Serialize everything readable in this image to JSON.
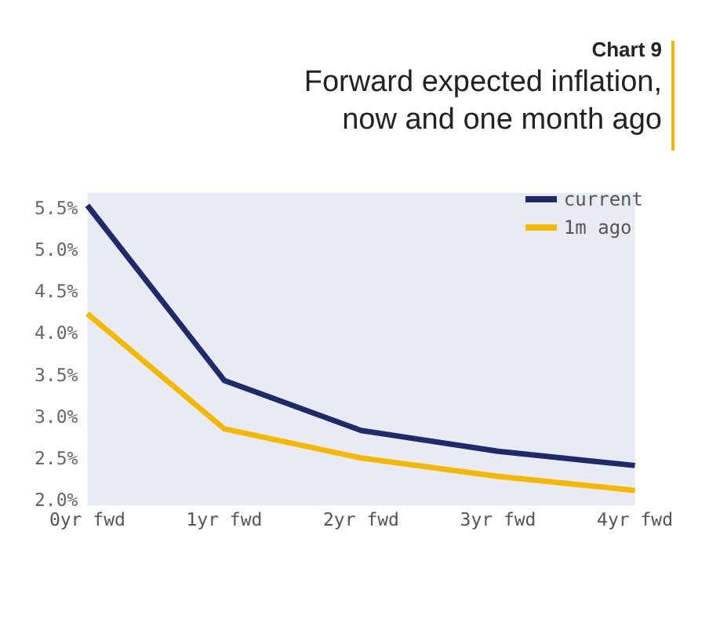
{
  "chart_data": {
    "type": "line",
    "title": "Forward expected inflation, now and one month ago",
    "annotations": [
      "Chart 9"
    ],
    "categories": [
      "0yr fwd",
      "1yr fwd",
      "2yr fwd",
      "3yr fwd",
      "4yr fwd"
    ],
    "series": [
      {
        "name": "current",
        "color": "#1f2a6b",
        "values": [
          5.55,
          3.45,
          2.85,
          2.6,
          2.43
        ]
      },
      {
        "name": "1m ago",
        "color": "#f5b800",
        "values": [
          4.25,
          2.87,
          2.52,
          2.3,
          2.13
        ]
      }
    ],
    "ylim": [
      1.95,
      5.7
    ],
    "yticks": [
      {
        "value": 2,
        "label": "2.0%"
      },
      {
        "value": 2.5,
        "label": "2.5%"
      },
      {
        "value": 3,
        "label": "3.0%"
      },
      {
        "value": 3.5,
        "label": "3.5%"
      },
      {
        "value": 4,
        "label": "4.0%"
      },
      {
        "value": 4.5,
        "label": "4.5%"
      },
      {
        "value": 5,
        "label": "5.0%"
      },
      {
        "value": 5.5,
        "label": "5.5%"
      }
    ],
    "legend": "top right",
    "marker": "none",
    "line_style": "solid"
  }
}
